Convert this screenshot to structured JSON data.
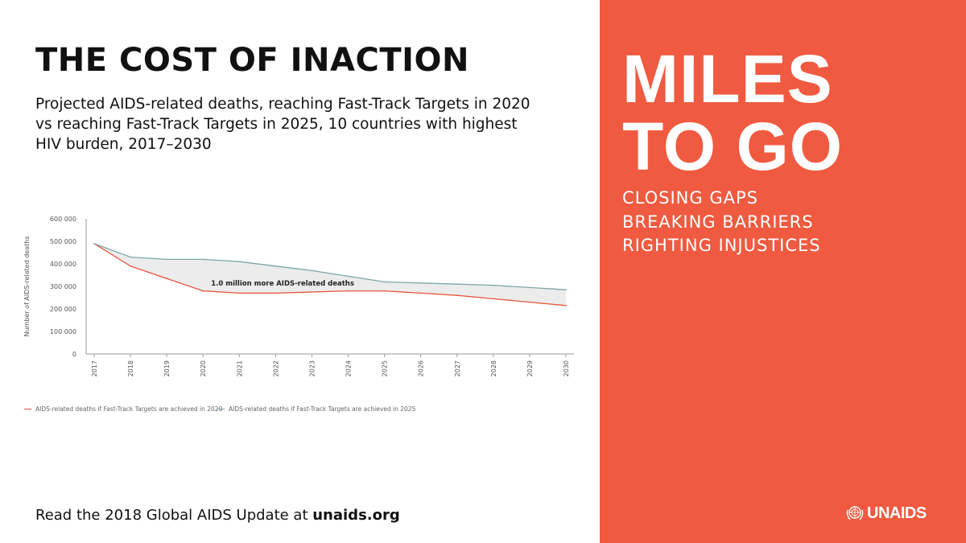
{
  "header": {
    "title": "THE COST OF INACTION",
    "subtitle": "Projected AIDS-related deaths, reaching Fast-Track Targets in 2020 vs reaching Fast-Track Targets in 2025, 10 countries with highest HIV burden, 2017–2030"
  },
  "footer": {
    "text": "Read the 2018 Global AIDS Update at ",
    "link": "unaids.org"
  },
  "banner": {
    "line1": "MILES",
    "line2": "TO GO",
    "tagline": [
      "CLOSING GAPS",
      "BREAKING BARRIERS",
      "RIGHTING INJUSTICES"
    ],
    "logo_text": "UNAIDS",
    "logo_icon": "un-emblem-icon"
  },
  "colors": {
    "accent": "#f05a40",
    "series_2020": "#e8553f",
    "series_2025": "#7fa6a6",
    "fill": "#ececec"
  },
  "chart_data": {
    "type": "line",
    "title": "Projected AIDS-related deaths, 10 countries with highest HIV burden, 2017–2030",
    "xlabel": "",
    "ylabel": "Number of AIDS-related deaths",
    "x": [
      "2017",
      "2018",
      "2019",
      "2020",
      "2021",
      "2022",
      "2023",
      "2024",
      "2025",
      "2026",
      "2027",
      "2028",
      "2029",
      "2030"
    ],
    "ylim": [
      0,
      600000
    ],
    "yticks": [
      0,
      100000,
      200000,
      300000,
      400000,
      500000,
      600000
    ],
    "ytick_labels": [
      "0",
      "100 000",
      "200 000",
      "300 000",
      "400 000",
      "500 000",
      "600 000"
    ],
    "series": [
      {
        "name": "AIDS-related deaths if Fast-Track Targets are achieved in 2020",
        "color": "#e8553f",
        "values": [
          490000,
          390000,
          335000,
          280000,
          270000,
          270000,
          275000,
          280000,
          280000,
          270000,
          260000,
          245000,
          230000,
          215000
        ]
      },
      {
        "name": "AIDS-related deaths if Fast-Track Targets are achieved in 2025",
        "color": "#7fa6a6",
        "values": [
          490000,
          430000,
          420000,
          420000,
          410000,
          390000,
          370000,
          345000,
          320000,
          315000,
          310000,
          305000,
          295000,
          285000
        ]
      }
    ],
    "annotation": "1.0 million more AIDS-related deaths",
    "grid": false,
    "legend_position": "bottom"
  }
}
